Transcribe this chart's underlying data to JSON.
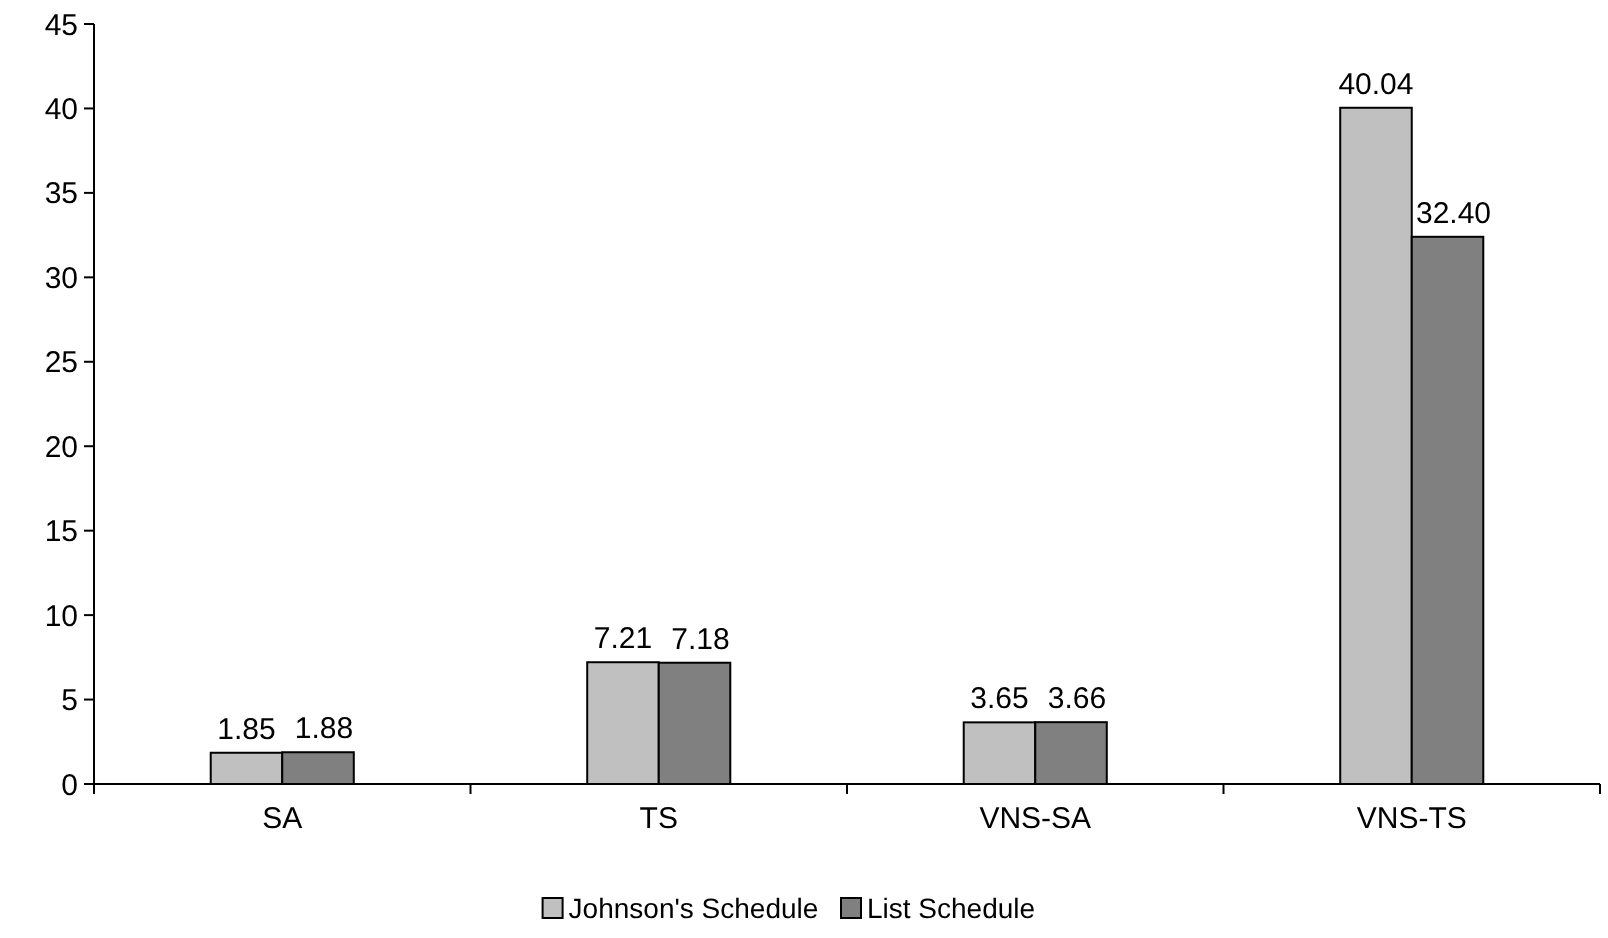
{
  "chart_data": {
    "type": "bar",
    "categories": [
      "SA",
      "TS",
      "VNS-SA",
      "VNS-TS"
    ],
    "series": [
      {
        "name": "Johnson's Schedule",
        "color": "#c0c0c0",
        "values": [
          1.85,
          7.21,
          3.65,
          40.04
        ],
        "value_labels": [
          "1.85",
          "7.21",
          "3.65",
          "40.04"
        ]
      },
      {
        "name": "List Schedule",
        "color": "#808080",
        "values": [
          1.88,
          7.18,
          3.66,
          32.4
        ],
        "value_labels": [
          "1.88",
          "7.18",
          "3.66",
          "32.40"
        ]
      }
    ],
    "ylim": [
      0,
      45
    ],
    "yticks": [
      0,
      5,
      10,
      15,
      20,
      25,
      30,
      35,
      40,
      45
    ],
    "grid": false,
    "legend": "bottom"
  }
}
